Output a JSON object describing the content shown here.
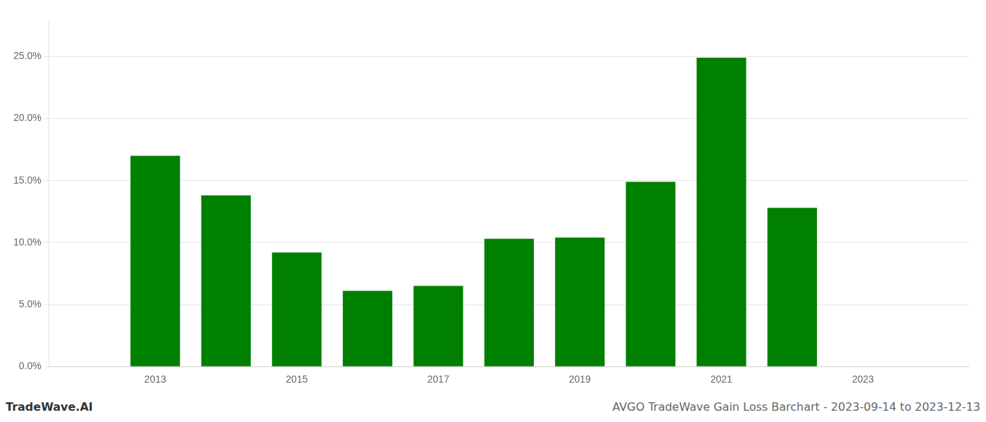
{
  "chart_data": {
    "type": "bar",
    "x": [
      2013,
      2014,
      2015,
      2016,
      2017,
      2018,
      2019,
      2020,
      2021,
      2022
    ],
    "values": [
      0.17,
      0.138,
      0.092,
      0.061,
      0.065,
      0.103,
      0.104,
      0.149,
      0.249,
      0.128
    ],
    "color": "#008000",
    "xlim": [
      2011.5,
      2024.5
    ],
    "xticks": [
      2013,
      2015,
      2017,
      2019,
      2021,
      2023
    ],
    "ylim": [
      0,
      0.28
    ],
    "yticks": [
      {
        "value": 0.0,
        "label": "0.0%"
      },
      {
        "value": 0.05,
        "label": "5.0%"
      },
      {
        "value": 0.1,
        "label": "10.0%"
      },
      {
        "value": 0.15,
        "label": "15.0%"
      },
      {
        "value": 0.2,
        "label": "20.0%"
      },
      {
        "value": 0.25,
        "label": "25.0%"
      }
    ],
    "grid": true,
    "annotations": [
      "TradeWave.AI",
      "AVGO TradeWave Gain Loss Barchart - 2023-09-14 to 2023-12-13"
    ]
  }
}
